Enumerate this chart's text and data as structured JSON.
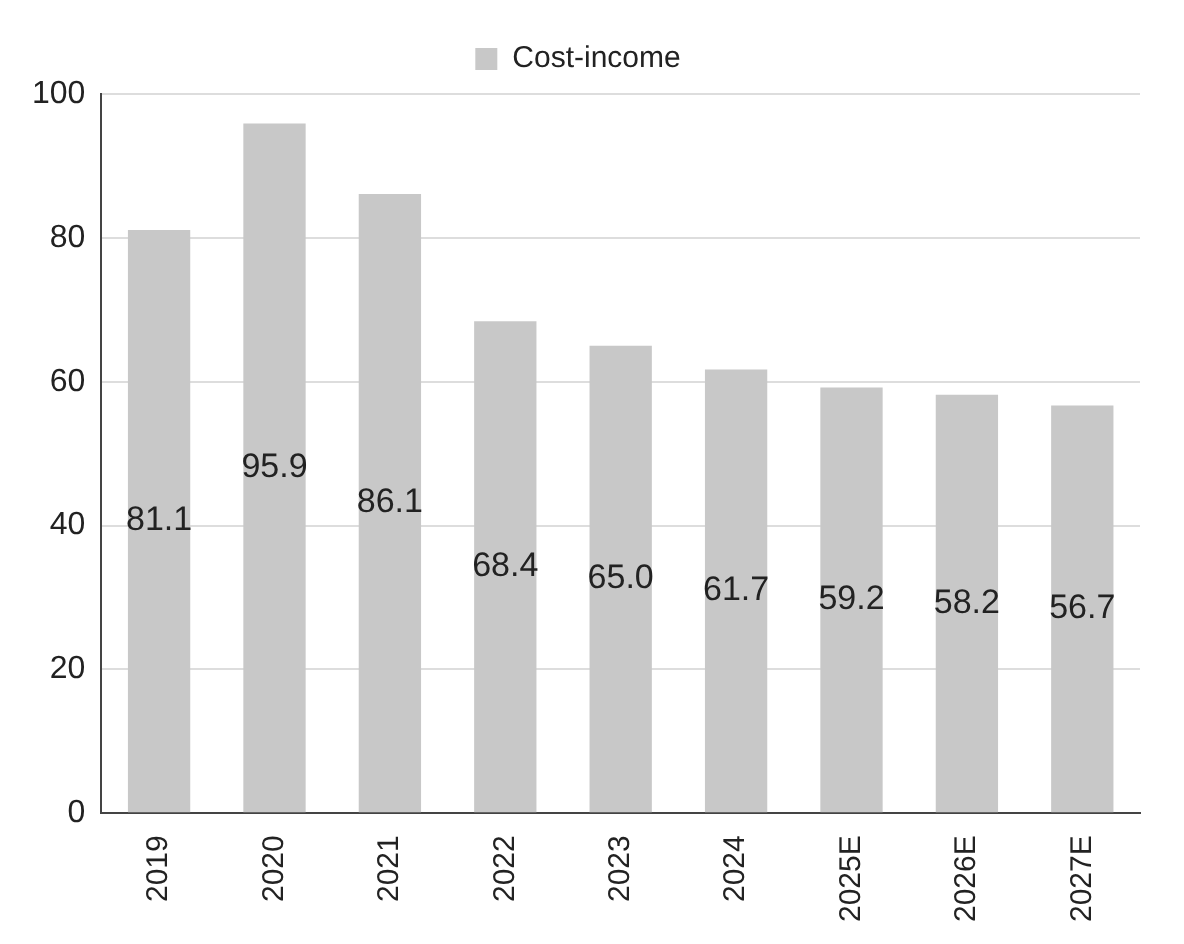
{
  "chart_data": {
    "type": "bar",
    "categories": [
      "2019",
      "2020",
      "2021",
      "2022",
      "2023",
      "2024",
      "2025E",
      "2026E",
      "2027E"
    ],
    "series": [
      {
        "name": "Cost-income",
        "color": "#c8c8c8",
        "values": [
          81.1,
          95.9,
          86.1,
          68.4,
          65.0,
          61.7,
          59.2,
          58.2,
          56.7
        ]
      }
    ],
    "value_labels": [
      "81.1",
      "95.9",
      "86.1",
      "68.4",
      "65.0",
      "61.7",
      "59.2",
      "58.2",
      "56.7"
    ],
    "ylim": [
      0,
      100
    ],
    "yticks": [
      0,
      20,
      40,
      60,
      80,
      100
    ],
    "grid": "y",
    "legend": "top"
  }
}
